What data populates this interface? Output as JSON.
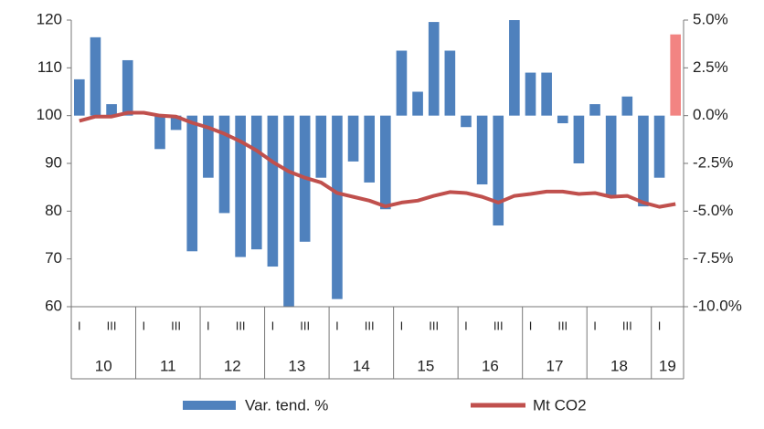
{
  "chart_data": {
    "type": "bar_line",
    "categories": [
      "I",
      null,
      "III",
      null,
      "I",
      null,
      "III",
      null,
      "I",
      null,
      "III",
      null,
      "I",
      null,
      "III",
      null,
      "I",
      null,
      "III",
      null,
      "I",
      null,
      "III",
      null,
      "I",
      null,
      "III",
      null,
      "I",
      null,
      "III",
      null,
      "I",
      null,
      "III",
      null,
      "I",
      null
    ],
    "groups": [
      {
        "label": "10",
        "span": 4
      },
      {
        "label": "11",
        "span": 4
      },
      {
        "label": "12",
        "span": 4
      },
      {
        "label": "13",
        "span": 4
      },
      {
        "label": "14",
        "span": 4
      },
      {
        "label": "15",
        "span": 4
      },
      {
        "label": "16",
        "span": 4
      },
      {
        "label": "17",
        "span": 4
      },
      {
        "label": "18",
        "span": 4
      },
      {
        "label": "19",
        "span": 2
      }
    ],
    "series": [
      {
        "name": "Var. tend. %",
        "kind": "bar",
        "axis": "y2",
        "color": "#4f81bd",
        "colors": [
          "#4f81bd",
          "#4f81bd",
          "#4f81bd",
          "#4f81bd",
          "#4f81bd",
          "#4f81bd",
          "#4f81bd",
          "#4f81bd",
          "#4f81bd",
          "#4f81bd",
          "#4f81bd",
          "#4f81bd",
          "#4f81bd",
          "#4f81bd",
          "#4f81bd",
          "#4f81bd",
          "#4f81bd",
          "#4f81bd",
          "#4f81bd",
          "#4f81bd",
          "#4f81bd",
          "#4f81bd",
          "#4f81bd",
          "#4f81bd",
          "#4f81bd",
          "#4f81bd",
          "#4f81bd",
          "#4f81bd",
          "#4f81bd",
          "#4f81bd",
          "#4f81bd",
          "#4f81bd",
          "#4f81bd",
          "#4f81bd",
          "#4f81bd",
          "#4f81bd",
          "#4f81bd",
          "#f28482"
        ],
        "values": [
          1.9,
          4.1,
          0.6,
          2.9,
          0,
          -1.75,
          -0.75,
          -7.1,
          -3.25,
          -5.1,
          -7.4,
          -7.0,
          -7.9,
          -10.0,
          -6.6,
          -3.25,
          -9.6,
          -2.4,
          -3.5,
          -4.9,
          3.4,
          1.25,
          4.9,
          3.4,
          -0.6,
          -3.6,
          -5.75,
          5.0,
          2.25,
          2.25,
          -0.4,
          -2.5,
          0.6,
          -4.25,
          1.0,
          -4.75,
          -3.25,
          4.25
        ]
      },
      {
        "name": "Mt CO2",
        "kind": "line",
        "axis": "y",
        "color": "#c0504d",
        "values": [
          98.9,
          99.8,
          99.8,
          100.6,
          100.6,
          100.0,
          99.8,
          98.5,
          97.5,
          96.2,
          94.6,
          92.7,
          90.3,
          88.3,
          87.0,
          86.0,
          83.8,
          83.0,
          82.2,
          81.0,
          81.8,
          82.2,
          83.2,
          84.0,
          83.8,
          83.0,
          81.8,
          83.2,
          83.6,
          84.1,
          84.1,
          83.6,
          83.8,
          83.0,
          83.2,
          81.8,
          80.9,
          81.5
        ]
      }
    ],
    "ylim": [
      60,
      120
    ],
    "yticks": [
      60,
      70,
      80,
      90,
      100,
      110,
      120
    ],
    "y2lim": [
      -10,
      5
    ],
    "y2ticks": [
      {
        "value": -10,
        "label": "-10.0%"
      },
      {
        "value": -7.5,
        "label": "-7.5%"
      },
      {
        "value": -5,
        "label": "-5.0%"
      },
      {
        "value": -2.5,
        "label": "-2.5%"
      },
      {
        "value": 0,
        "label": "0.0%"
      },
      {
        "value": 2.5,
        "label": "2.5%"
      },
      {
        "value": 5,
        "label": "5.0%"
      }
    ],
    "legend": "bottom",
    "grid": false
  }
}
